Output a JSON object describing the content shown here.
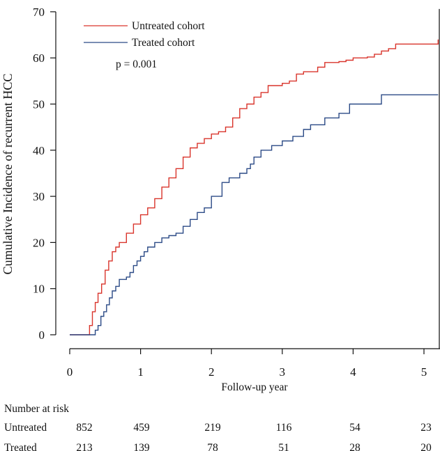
{
  "chart_data": {
    "type": "line",
    "step": true,
    "xlabel": "Follow-up year",
    "ylabel": "Cumulative Incidence of recurrent HCC",
    "xlim": [
      0,
      5.2
    ],
    "ylim": [
      0,
      70
    ],
    "xticks": [
      0,
      1,
      2,
      3,
      4,
      5
    ],
    "yticks": [
      0,
      10,
      20,
      30,
      40,
      50,
      60,
      70
    ],
    "legend": {
      "position": "top-left",
      "entries": [
        "Untreated cohort",
        "Treated cohort"
      ]
    },
    "annotations": [
      "p = 0.001"
    ],
    "series": [
      {
        "name": "Untreated cohort",
        "color": "#d9342b",
        "x": [
          0,
          0.25,
          0.28,
          0.32,
          0.36,
          0.4,
          0.45,
          0.5,
          0.55,
          0.6,
          0.65,
          0.7,
          0.8,
          0.9,
          1.0,
          1.1,
          1.2,
          1.3,
          1.4,
          1.5,
          1.6,
          1.7,
          1.8,
          1.9,
          2.0,
          2.1,
          2.2,
          2.3,
          2.4,
          2.5,
          2.6,
          2.7,
          2.8,
          3.0,
          3.1,
          3.2,
          3.3,
          3.5,
          3.6,
          3.8,
          3.9,
          4.0,
          4.2,
          4.3,
          4.4,
          4.5,
          4.6,
          5.2
        ],
        "y": [
          0,
          0,
          2,
          5,
          7,
          9,
          11,
          14,
          16,
          18,
          19,
          20,
          22,
          24,
          26,
          27.5,
          29.5,
          32,
          34,
          36,
          38.5,
          40.5,
          41.5,
          42.5,
          43.5,
          44,
          45,
          47,
          49,
          50,
          51.5,
          52.5,
          54,
          54.5,
          55,
          56.5,
          57,
          58,
          59,
          59.2,
          59.5,
          60,
          60.2,
          60.8,
          61.5,
          62,
          63,
          64
        ]
      },
      {
        "name": "Treated cohort",
        "color": "#2b4a86",
        "x": [
          0,
          0.33,
          0.36,
          0.4,
          0.44,
          0.48,
          0.52,
          0.56,
          0.6,
          0.65,
          0.7,
          0.8,
          0.85,
          0.9,
          0.95,
          1.0,
          1.05,
          1.1,
          1.2,
          1.3,
          1.4,
          1.5,
          1.6,
          1.7,
          1.8,
          1.9,
          2.0,
          2.15,
          2.25,
          2.4,
          2.5,
          2.55,
          2.6,
          2.7,
          2.85,
          3.0,
          3.15,
          3.3,
          3.4,
          3.6,
          3.8,
          3.95,
          4.4,
          5.2
        ],
        "y": [
          0,
          0,
          1,
          2,
          4,
          5,
          6.5,
          8,
          9.5,
          10.5,
          12,
          12.5,
          13.5,
          15,
          16,
          17,
          18,
          19,
          20,
          21,
          21.5,
          22,
          23.5,
          25,
          26.5,
          27.5,
          30,
          33,
          34,
          35,
          36,
          37,
          38.5,
          40,
          41,
          42,
          43,
          44.5,
          45.5,
          47,
          48,
          50,
          52,
          52
        ]
      }
    ]
  },
  "risk_table": {
    "title": "Number at risk",
    "rows": [
      {
        "label": "Untreated",
        "values": [
          "852",
          "459",
          "219",
          "116",
          "54",
          "23"
        ]
      },
      {
        "label": "Treated",
        "values": [
          "213",
          "139",
          "78",
          "51",
          "28",
          "20"
        ]
      }
    ]
  }
}
